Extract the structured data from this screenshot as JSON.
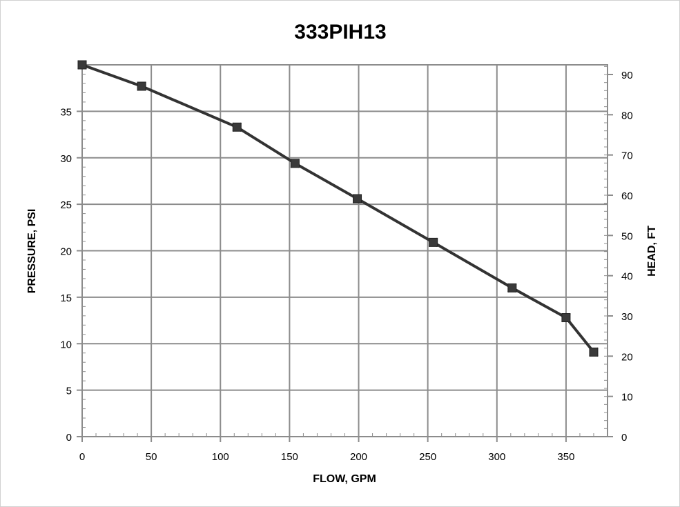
{
  "chart_data": {
    "type": "line",
    "title": "333PIH13",
    "xlabel": "FLOW, GPM",
    "ylabel": "PRESSURE, PSI",
    "y2label": "HEAD, FT",
    "xlim": [
      0,
      380
    ],
    "ylim": [
      0,
      40
    ],
    "y2lim": [
      0,
      92.4
    ],
    "xticks": [
      0,
      50,
      100,
      150,
      200,
      250,
      300,
      350
    ],
    "yticks": [
      0,
      5,
      10,
      15,
      20,
      25,
      30,
      35
    ],
    "y2ticks": [
      0,
      10,
      20,
      30,
      40,
      50,
      60,
      70,
      80,
      90
    ],
    "grid": true,
    "legend": "none",
    "series": [
      {
        "x": [
          0,
          43,
          112,
          154,
          199,
          254,
          311,
          350,
          370
        ],
        "y": [
          40.0,
          37.7,
          33.3,
          29.4,
          25.6,
          20.9,
          16.0,
          12.8,
          9.1
        ]
      }
    ],
    "colors": {
      "line": "#333333",
      "marker": "#3a3a3a",
      "grid": "#8c8c8c"
    }
  }
}
